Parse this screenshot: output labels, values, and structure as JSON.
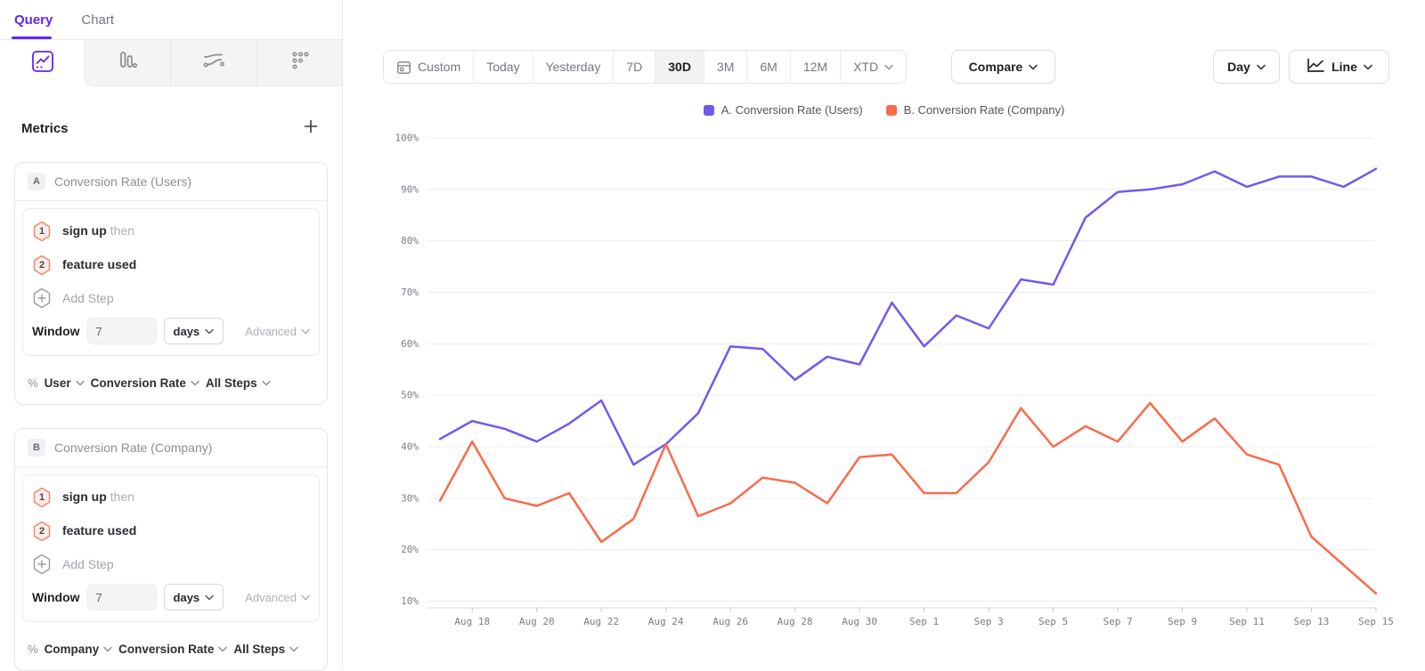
{
  "colors": {
    "accent": "#6425f0",
    "series_a": "#6F5AEF",
    "series_b": "#F96B4B",
    "grid": "#EDEDF0",
    "axis_line": "#DADADF",
    "tick": "#C8C8CE"
  },
  "sidebar": {
    "tabs": [
      {
        "label": "Query",
        "active": true
      },
      {
        "label": "Chart",
        "active": false
      }
    ],
    "view_icons": [
      "insights-line-icon",
      "bars-icon",
      "flows-icon",
      "retention-grid-icon"
    ],
    "metrics_title": "Metrics",
    "cards": [
      {
        "letter": "A",
        "title": "Conversion Rate (Users)",
        "steps": [
          {
            "num": "1",
            "name": "sign up",
            "suffix": "then"
          },
          {
            "num": "2",
            "name": "feature used",
            "suffix": ""
          }
        ],
        "add_step_label": "Add Step",
        "window_label": "Window",
        "window_value": "7",
        "window_unit": "days",
        "advanced_label": "Advanced",
        "measure_prefix": "%",
        "entity": "User",
        "measure": "Conversion Rate",
        "scope": "All Steps"
      },
      {
        "letter": "B",
        "title": "Conversion Rate (Company)",
        "steps": [
          {
            "num": "1",
            "name": "sign up",
            "suffix": "then"
          },
          {
            "num": "2",
            "name": "feature used",
            "suffix": ""
          }
        ],
        "add_step_label": "Add Step",
        "window_label": "Window",
        "window_value": "7",
        "window_unit": "days",
        "advanced_label": "Advanced",
        "measure_prefix": "%",
        "entity": "Company",
        "measure": "Conversion Rate",
        "scope": "All Steps"
      }
    ]
  },
  "toolbar": {
    "ranges": [
      {
        "label": "Custom",
        "icon": "calendar",
        "active": false
      },
      {
        "label": "Today",
        "active": false
      },
      {
        "label": "Yesterday",
        "active": false
      },
      {
        "label": "7D",
        "active": false
      },
      {
        "label": "30D",
        "active": true
      },
      {
        "label": "3M",
        "active": false
      },
      {
        "label": "6M",
        "active": false
      },
      {
        "label": "12M",
        "active": false
      },
      {
        "label": "XTD",
        "chevron": true,
        "active": false
      }
    ],
    "compare_label": "Compare",
    "granularity_label": "Day",
    "chart_type_label": "Line"
  },
  "legend": [
    {
      "label": "A. Conversion Rate (Users)",
      "color": "#6F5AEF"
    },
    {
      "label": "B. Conversion Rate (Company)",
      "color": "#F96B4B"
    }
  ],
  "chart_data": {
    "type": "line",
    "title": "",
    "xlabel": "",
    "ylabel": "",
    "unit": "%",
    "ylim": [
      10,
      100
    ],
    "yticks": [
      10,
      20,
      30,
      40,
      50,
      60,
      70,
      80,
      90,
      100
    ],
    "grid": true,
    "legend_position": "top",
    "x": [
      "Aug 17",
      "Aug 18",
      "Aug 19",
      "Aug 20",
      "Aug 21",
      "Aug 22",
      "Aug 23",
      "Aug 24",
      "Aug 25",
      "Aug 26",
      "Aug 27",
      "Aug 28",
      "Aug 29",
      "Aug 30",
      "Aug 31",
      "Sep 1",
      "Sep 2",
      "Sep 3",
      "Sep 4",
      "Sep 5",
      "Sep 6",
      "Sep 7",
      "Sep 8",
      "Sep 9",
      "Sep 10",
      "Sep 11",
      "Sep 12",
      "Sep 13",
      "Sep 14",
      "Sep 15"
    ],
    "xticklabels": [
      "Aug 18",
      "Aug 20",
      "Aug 22",
      "Aug 24",
      "Aug 26",
      "Aug 28",
      "Aug 30",
      "Sep 1",
      "Sep 3",
      "Sep 5",
      "Sep 7",
      "Sep 9",
      "Sep 11",
      "Sep 13",
      "Sep 15"
    ],
    "series": [
      {
        "name": "A. Conversion Rate (Users)",
        "color": "#6F5AEF",
        "values": [
          41.5,
          45,
          43.5,
          41,
          44.5,
          49,
          36.5,
          40.5,
          46.5,
          59.5,
          59,
          53,
          57.5,
          56,
          68,
          59.5,
          65.5,
          63,
          72.5,
          71.5,
          84.5,
          89.5,
          90,
          91,
          93.5,
          90.5,
          92.5,
          92.5,
          90.5,
          94
        ]
      },
      {
        "name": "B. Conversion Rate (Company)",
        "color": "#F96B4B",
        "values": [
          29.5,
          41,
          30,
          28.5,
          31,
          21.5,
          26,
          40.5,
          26.5,
          29,
          34,
          33,
          29,
          38,
          38.5,
          31,
          31,
          37,
          47.5,
          40,
          44,
          41,
          48.5,
          41,
          45.5,
          38.5,
          36.5,
          22.5,
          17,
          11.5
        ]
      }
    ]
  }
}
